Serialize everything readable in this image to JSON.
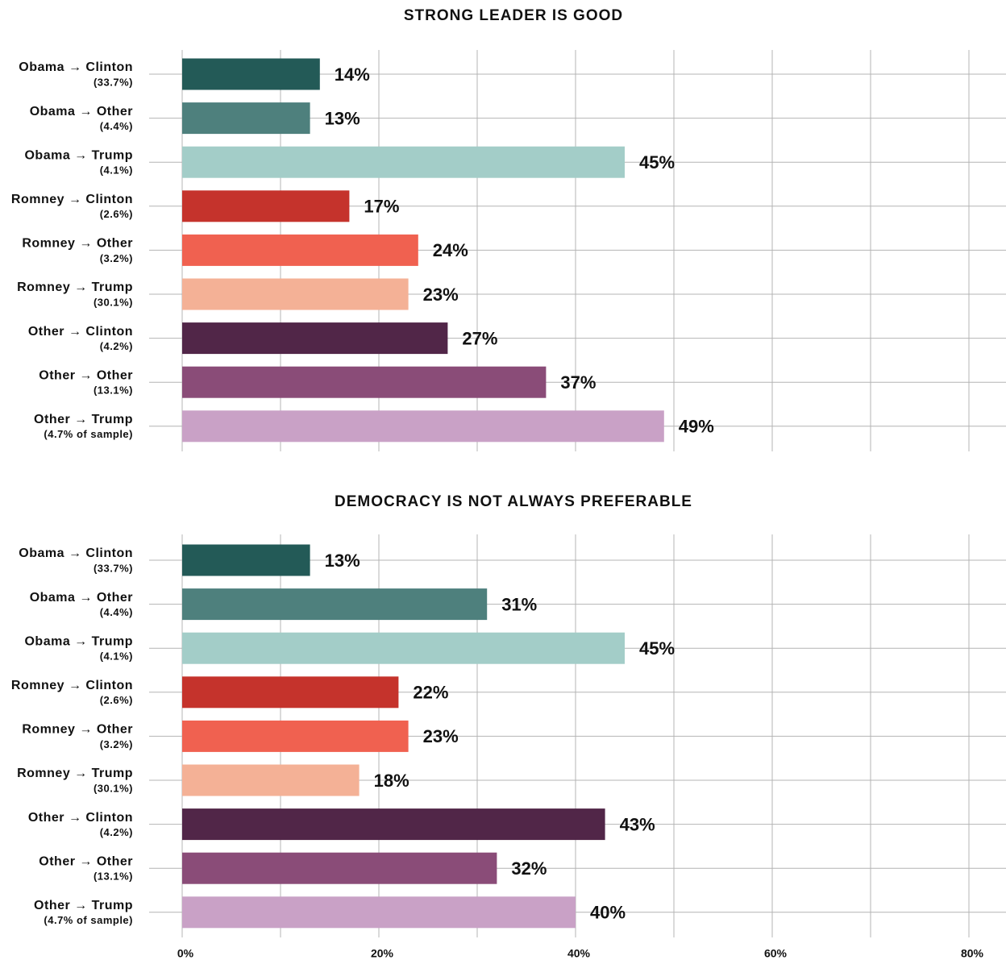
{
  "chart_data": [
    {
      "type": "bar",
      "title": "STRONG LEADER IS GOOD",
      "categories": [
        "Obama → Clinton",
        "Obama → Other",
        "Obama → Trump",
        "Romney → Clinton",
        "Romney → Other",
        "Romney → Trump",
        "Other → Clinton",
        "Other → Other",
        "Other → Trump"
      ],
      "subcategories": [
        "(33.7%)",
        "(4.4%)",
        "(4.1%)",
        "(2.6%)",
        "(3.2%)",
        "(30.1%)",
        "(4.2%)",
        "(13.1%)",
        "(4.7% of sample)"
      ],
      "values": [
        14,
        13,
        45,
        17,
        24,
        23,
        27,
        37,
        49
      ],
      "value_labels": [
        "14%",
        "13%",
        "45%",
        "17%",
        "24%",
        "23%",
        "27%",
        "37%",
        "49%"
      ],
      "colors": [
        "#235a57",
        "#4e807d",
        "#a3cdc8",
        "#c5332c",
        "#f06150",
        "#f4b196",
        "#512648",
        "#8a4c78",
        "#c9a1c6"
      ]
    },
    {
      "type": "bar",
      "title": "DEMOCRACY IS NOT ALWAYS PREFERABLE",
      "categories": [
        "Obama → Clinton",
        "Obama → Other",
        "Obama → Trump",
        "Romney → Clinton",
        "Romney → Other",
        "Romney → Trump",
        "Other → Clinton",
        "Other → Other",
        "Other → Trump"
      ],
      "subcategories": [
        "(33.7%)",
        "(4.4%)",
        "(4.1%)",
        "(2.6%)",
        "(3.2%)",
        "(30.1%)",
        "(4.2%)",
        "(13.1%)",
        "(4.7% of sample)"
      ],
      "values": [
        13,
        31,
        45,
        22,
        23,
        18,
        43,
        32,
        40
      ],
      "value_labels": [
        "13%",
        "31%",
        "45%",
        "22%",
        "23%",
        "18%",
        "43%",
        "32%",
        "40%"
      ],
      "colors": [
        "#235a57",
        "#4e807d",
        "#a3cdc8",
        "#c5332c",
        "#f06150",
        "#f4b196",
        "#512648",
        "#8a4c78",
        "#c9a1c6"
      ]
    }
  ],
  "shared_axis": {
    "xlim": [
      0,
      84
    ],
    "xticks": [
      {
        "value": 0,
        "label": "0%"
      },
      {
        "value": 20,
        "label": "20%"
      },
      {
        "value": 40,
        "label": "40%"
      },
      {
        "value": 60,
        "label": "60%"
      },
      {
        "value": 80,
        "label": "80%"
      }
    ],
    "minor_xticks": [
      10,
      30,
      50,
      70
    ],
    "grid": true
  }
}
